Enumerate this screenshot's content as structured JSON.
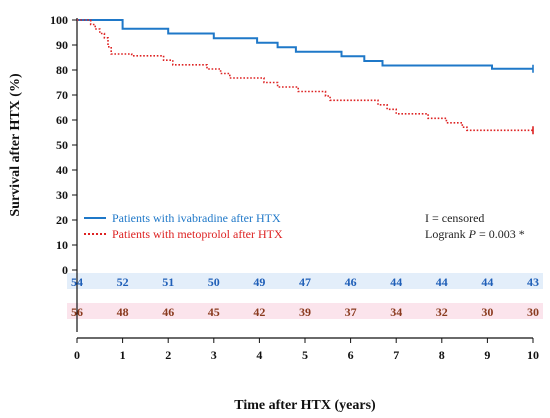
{
  "chart_data": {
    "type": "line",
    "subtype": "kaplan-meier",
    "xlabel": "Time after HTX (years)",
    "ylabel": "Survival after HTX (%)",
    "xlim": [
      0,
      10
    ],
    "ylim": [
      0,
      100
    ],
    "x_ticks": [
      "0",
      "1",
      "2",
      "3",
      "4",
      "5",
      "6",
      "7",
      "8",
      "9",
      "10"
    ],
    "y_ticks": [
      "0",
      "10",
      "20",
      "30",
      "40",
      "50",
      "60",
      "70",
      "80",
      "90",
      "100"
    ],
    "grid": false,
    "series": [
      {
        "name": "Patients with ivabradine after HTX",
        "color": "#1f78c8",
        "style": "solid",
        "points": [
          [
            0,
            100
          ],
          [
            1,
            100
          ],
          [
            1,
            96.5
          ],
          [
            2,
            96.5
          ],
          [
            2,
            94.6
          ],
          [
            3,
            94.6
          ],
          [
            3,
            92.7
          ],
          [
            3.95,
            92.7
          ],
          [
            3.95,
            90.9
          ],
          [
            4.4,
            90.9
          ],
          [
            4.4,
            89.1
          ],
          [
            4.8,
            89.1
          ],
          [
            4.8,
            87.3
          ],
          [
            5.8,
            87.3
          ],
          [
            5.8,
            85.5
          ],
          [
            6.3,
            85.5
          ],
          [
            6.3,
            83.6
          ],
          [
            6.7,
            83.6
          ],
          [
            6.7,
            81.8
          ],
          [
            9.1,
            81.8
          ],
          [
            9.1,
            80.5
          ],
          [
            10,
            80.5
          ]
        ],
        "censor_end": [
          10,
          80.5
        ]
      },
      {
        "name": "Patients with metoprolol after HTX",
        "color": "#dd2222",
        "style": "dotted",
        "points": [
          [
            0,
            100
          ],
          [
            0.3,
            100
          ],
          [
            0.3,
            98.2
          ],
          [
            0.4,
            98.2
          ],
          [
            0.4,
            96.4
          ],
          [
            0.5,
            96.4
          ],
          [
            0.5,
            94.6
          ],
          [
            0.6,
            94.6
          ],
          [
            0.6,
            92.9
          ],
          [
            0.68,
            92.9
          ],
          [
            0.68,
            89.3
          ],
          [
            0.75,
            89.3
          ],
          [
            0.75,
            86.4
          ],
          [
            1.2,
            86.4
          ],
          [
            1.2,
            85.7
          ],
          [
            1.9,
            85.7
          ],
          [
            1.9,
            83.9
          ],
          [
            2.1,
            83.9
          ],
          [
            2.1,
            82.1
          ],
          [
            2.85,
            82.1
          ],
          [
            2.85,
            80.4
          ],
          [
            3.15,
            80.4
          ],
          [
            3.15,
            78.6
          ],
          [
            3.35,
            78.6
          ],
          [
            3.35,
            76.8
          ],
          [
            4.1,
            76.8
          ],
          [
            4.1,
            75
          ],
          [
            4.4,
            75
          ],
          [
            4.4,
            73.2
          ],
          [
            4.85,
            73.2
          ],
          [
            4.85,
            71.4
          ],
          [
            5.45,
            71.4
          ],
          [
            5.45,
            69.6
          ],
          [
            5.55,
            69.6
          ],
          [
            5.55,
            67.9
          ],
          [
            6.6,
            67.9
          ],
          [
            6.6,
            66.1
          ],
          [
            6.8,
            66.1
          ],
          [
            6.8,
            64.3
          ],
          [
            7.0,
            64.3
          ],
          [
            7.0,
            62.5
          ],
          [
            7.7,
            62.5
          ],
          [
            7.7,
            60.7
          ],
          [
            8.1,
            60.7
          ],
          [
            8.1,
            58.9
          ],
          [
            8.45,
            58.9
          ],
          [
            8.45,
            57.1
          ],
          [
            8.55,
            57.1
          ],
          [
            8.55,
            55.9
          ],
          [
            10,
            55.9
          ]
        ],
        "censor_end": [
          10,
          55.9
        ]
      }
    ],
    "annotation": {
      "censor_note": "I = censored",
      "logrank_prefix": "Logrank ",
      "logrank_symbol": "P",
      "logrank_suffix": " = 0.003 *"
    },
    "risk_table": {
      "times": [
        0,
        1,
        2,
        3,
        4,
        5,
        6,
        7,
        8,
        9,
        10
      ],
      "rows": [
        {
          "series": "Patients with ivabradine after HTX",
          "color": "#1f5fb8",
          "bg": "#e3eefa",
          "counts": [
            54,
            52,
            51,
            50,
            49,
            47,
            46,
            44,
            44,
            44,
            43
          ]
        },
        {
          "series": "Patients with metoprolol after HTX",
          "color": "#8a3a1e",
          "bg": "#fbe4ec",
          "counts": [
            56,
            48,
            46,
            45,
            42,
            39,
            37,
            34,
            32,
            30,
            30
          ]
        }
      ]
    }
  }
}
